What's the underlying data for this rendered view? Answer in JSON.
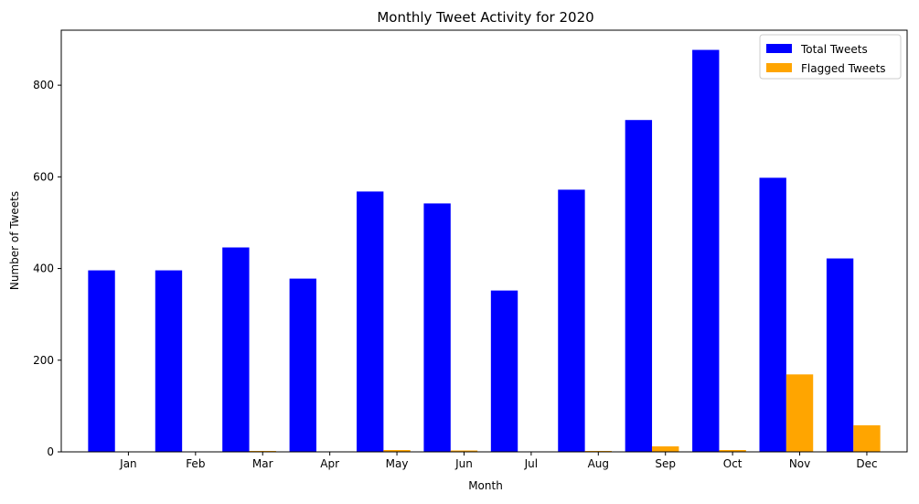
{
  "chart_data": {
    "type": "bar",
    "title": "Monthly Tweet Activity for 2020",
    "xlabel": "Month",
    "ylabel": "Number of Tweets",
    "categories": [
      "Jan",
      "Feb",
      "Mar",
      "Apr",
      "May",
      "Jun",
      "Jul",
      "Aug",
      "Sep",
      "Oct",
      "Nov",
      "Dec"
    ],
    "series": [
      {
        "name": "Total Tweets",
        "color": "#0000ff",
        "values": [
          396,
          396,
          446,
          378,
          568,
          542,
          352,
          572,
          724,
          877,
          598,
          422
        ]
      },
      {
        "name": "Flagged Tweets",
        "color": "#ffa500",
        "values": [
          0,
          0,
          2,
          0,
          4,
          3,
          0,
          2,
          12,
          4,
          169,
          58
        ]
      }
    ],
    "ylim": [
      0,
      920
    ],
    "yticks": [
      0,
      200,
      400,
      600,
      800
    ],
    "grid": false,
    "legend_position": "top-right"
  }
}
